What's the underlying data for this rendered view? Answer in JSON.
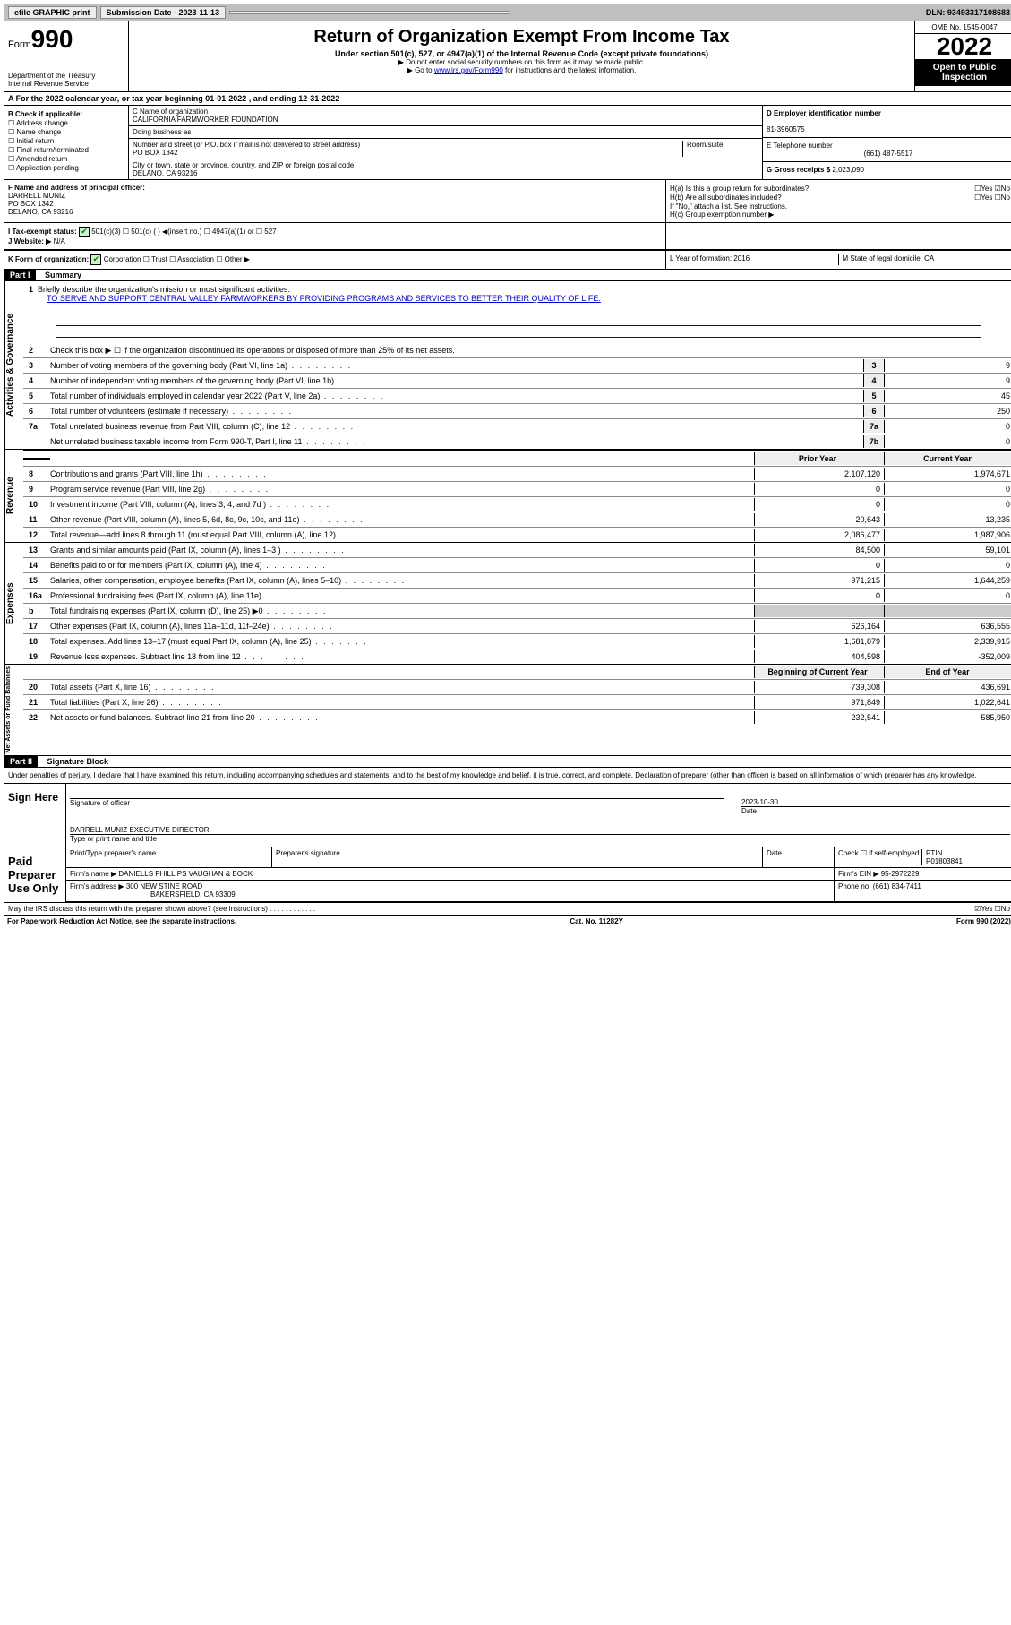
{
  "topbar": {
    "efile": "efile GRAPHIC print",
    "submission_label": "Submission Date - 2023-11-13",
    "dln": "DLN: 93493317108683"
  },
  "header": {
    "form_label": "Form",
    "form_num": "990",
    "dept": "Department of the Treasury",
    "irs": "Internal Revenue Service",
    "title": "Return of Organization Exempt From Income Tax",
    "sub1": "Under section 501(c), 527, or 4947(a)(1) of the Internal Revenue Code (except private foundations)",
    "sub2": "▶ Do not enter social security numbers on this form as it may be made public.",
    "sub3_pre": "▶ Go to ",
    "sub3_link": "www.irs.gov/Form990",
    "sub3_post": " for instructions and the latest information.",
    "omb": "OMB No. 1545-0047",
    "year": "2022",
    "open1": "Open to Public",
    "open2": "Inspection"
  },
  "row_a": "A For the 2022 calendar year, or tax year beginning 01-01-2022   , and ending 12-31-2022",
  "col_b": {
    "title": "B Check if applicable:",
    "opts": [
      "Address change",
      "Name change",
      "Initial return",
      "Final return/terminated",
      "Amended return",
      "Application pending"
    ]
  },
  "col_c": {
    "name_label": "C Name of organization",
    "name": "CALIFORNIA FARMWORKER FOUNDATION",
    "dba": "Doing business as",
    "addr_label": "Number and street (or P.O. box if mail is not delivered to street address)",
    "room": "Room/suite",
    "addr": "PO BOX 1342",
    "city_label": "City or town, state or province, country, and ZIP or foreign postal code",
    "city": "DELANO, CA  93216"
  },
  "col_de": {
    "d_label": "D Employer identification number",
    "ein": "81-3960575",
    "e_label": "E Telephone number",
    "phone": "(661) 487-5517",
    "g_label": "G Gross receipts $",
    "gross": "2,023,090"
  },
  "row_f": {
    "label": "F Name and address of principal officer:",
    "name": "DARRELL MUNIZ",
    "addr1": "PO BOX 1342",
    "addr2": "DELANO, CA  93216"
  },
  "row_h": {
    "ha": "H(a)  Is this a group return for subordinates?",
    "ha_ans": "☐Yes ☑No",
    "hb": "H(b)  Are all subordinates included?",
    "hb_ans": "☐Yes ☐No",
    "hb_note": "If \"No,\" attach a list. See instructions.",
    "hc": "H(c)  Group exemption number ▶"
  },
  "row_i": {
    "label": "I   Tax-exempt status:",
    "opts": "501(c)(3)    ☐  501(c) (  ) ◀(insert no.)    ☐  4947(a)(1) or  ☐  527"
  },
  "row_j": {
    "label": "J   Website: ▶",
    "val": "N/A"
  },
  "row_k": {
    "label": "K Form of organization:",
    "opts": "Corporation  ☐ Trust  ☐ Association  ☐ Other ▶",
    "l": "L Year of formation: 2016",
    "m": "M State of legal domicile: CA"
  },
  "part1": {
    "title": "Part I",
    "name": "Summary",
    "l1": "Briefly describe the organization's mission or most significant activities:",
    "mission": "TO SERVE AND SUPPORT CENTRAL VALLEY FARMWORKERS BY PROVIDING PROGRAMS AND SERVICES TO BETTER THEIR QUALITY OF LIFE.",
    "l2": "Check this box ▶ ☐ if the organization discontinued its operations or disposed of more than 25% of its net assets.",
    "rows_single": [
      {
        "n": "3",
        "d": "Number of voting members of the governing body (Part VI, line 1a)",
        "box": "3",
        "v": "9"
      },
      {
        "n": "4",
        "d": "Number of independent voting members of the governing body (Part VI, line 1b)",
        "box": "4",
        "v": "9"
      },
      {
        "n": "5",
        "d": "Total number of individuals employed in calendar year 2022 (Part V, line 2a)",
        "box": "5",
        "v": "45"
      },
      {
        "n": "6",
        "d": "Total number of volunteers (estimate if necessary)",
        "box": "6",
        "v": "250"
      },
      {
        "n": "7a",
        "d": "Total unrelated business revenue from Part VIII, column (C), line 12",
        "box": "7a",
        "v": "0"
      },
      {
        "n": "",
        "d": "Net unrelated business taxable income from Form 990-T, Part I, line 11",
        "box": "7b",
        "v": "0"
      }
    ],
    "col_hdr1": "Prior Year",
    "col_hdr2": "Current Year"
  },
  "revenue": [
    {
      "n": "8",
      "d": "Contributions and grants (Part VIII, line 1h)",
      "v1": "2,107,120",
      "v2": "1,974,671"
    },
    {
      "n": "9",
      "d": "Program service revenue (Part VIII, line 2g)",
      "v1": "0",
      "v2": "0"
    },
    {
      "n": "10",
      "d": "Investment income (Part VIII, column (A), lines 3, 4, and 7d )",
      "v1": "0",
      "v2": "0"
    },
    {
      "n": "11",
      "d": "Other revenue (Part VIII, column (A), lines 5, 6d, 8c, 9c, 10c, and 11e)",
      "v1": "-20,643",
      "v2": "13,235"
    },
    {
      "n": "12",
      "d": "Total revenue—add lines 8 through 11 (must equal Part VIII, column (A), line 12)",
      "v1": "2,086,477",
      "v2": "1,987,906"
    }
  ],
  "expenses": [
    {
      "n": "13",
      "d": "Grants and similar amounts paid (Part IX, column (A), lines 1–3 )",
      "v1": "84,500",
      "v2": "59,101"
    },
    {
      "n": "14",
      "d": "Benefits paid to or for members (Part IX, column (A), line 4)",
      "v1": "0",
      "v2": "0"
    },
    {
      "n": "15",
      "d": "Salaries, other compensation, employee benefits (Part IX, column (A), lines 5–10)",
      "v1": "971,215",
      "v2": "1,644,259"
    },
    {
      "n": "16a",
      "d": "Professional fundraising fees (Part IX, column (A), line 11e)",
      "v1": "0",
      "v2": "0"
    },
    {
      "n": "b",
      "d": "Total fundraising expenses (Part IX, column (D), line 25) ▶0",
      "v1": "",
      "v2": ""
    },
    {
      "n": "17",
      "d": "Other expenses (Part IX, column (A), lines 11a–11d, 11f–24e)",
      "v1": "626,164",
      "v2": "636,555"
    },
    {
      "n": "18",
      "d": "Total expenses. Add lines 13–17 (must equal Part IX, column (A), line 25)",
      "v1": "1,681,879",
      "v2": "2,339,915"
    },
    {
      "n": "19",
      "d": "Revenue less expenses. Subtract line 18 from line 12",
      "v1": "404,598",
      "v2": "-352,009"
    }
  ],
  "netassets_hdr": {
    "v1": "Beginning of Current Year",
    "v2": "End of Year"
  },
  "netassets": [
    {
      "n": "20",
      "d": "Total assets (Part X, line 16)",
      "v1": "739,308",
      "v2": "436,691"
    },
    {
      "n": "21",
      "d": "Total liabilities (Part X, line 26)",
      "v1": "971,849",
      "v2": "1,022,641"
    },
    {
      "n": "22",
      "d": "Net assets or fund balances. Subtract line 21 from line 20",
      "v1": "-232,541",
      "v2": "-585,950"
    }
  ],
  "part2": {
    "title": "Part II",
    "name": "Signature Block",
    "decl": "Under penalties of perjury, I declare that I have examined this return, including accompanying schedules and statements, and to the best of my knowledge and belief, it is true, correct, and complete. Declaration of preparer (other than officer) is based on all information of which preparer has any knowledge."
  },
  "sign": {
    "label": "Sign Here",
    "sig": "Signature of officer",
    "date": "2023-10-30",
    "date_label": "Date",
    "name": "DARRELL MUNIZ  EXECUTIVE DIRECTOR",
    "name_label": "Type or print name and title"
  },
  "paid": {
    "label": "Paid Preparer Use Only",
    "h1": "Print/Type preparer's name",
    "h2": "Preparer's signature",
    "h3": "Date",
    "h4a": "Check ☐ if self-employed",
    "h4b": "PTIN",
    "ptin": "P01803841",
    "firm_label": "Firm's name    ▶",
    "firm": "DANIELLS PHILLIPS VAUGHAN & BOCK",
    "ein_label": "Firm's EIN ▶",
    "ein": "95-2972229",
    "addr_label": "Firm's address ▶",
    "addr1": "300 NEW STINE ROAD",
    "addr2": "BAKERSFIELD, CA  93309",
    "phone_label": "Phone no.",
    "phone": "(661) 834-7411"
  },
  "may_irs": {
    "q": "May the IRS discuss this return with the preparer shown above? (see instructions)",
    "ans": "☑Yes  ☐No"
  },
  "footer": {
    "left": "For Paperwork Reduction Act Notice, see the separate instructions.",
    "mid": "Cat. No. 11282Y",
    "right": "Form 990 (2022)"
  },
  "side_labels": {
    "ag": "Activities & Governance",
    "rev": "Revenue",
    "exp": "Expenses",
    "na": "Net Assets or Fund Balances"
  }
}
